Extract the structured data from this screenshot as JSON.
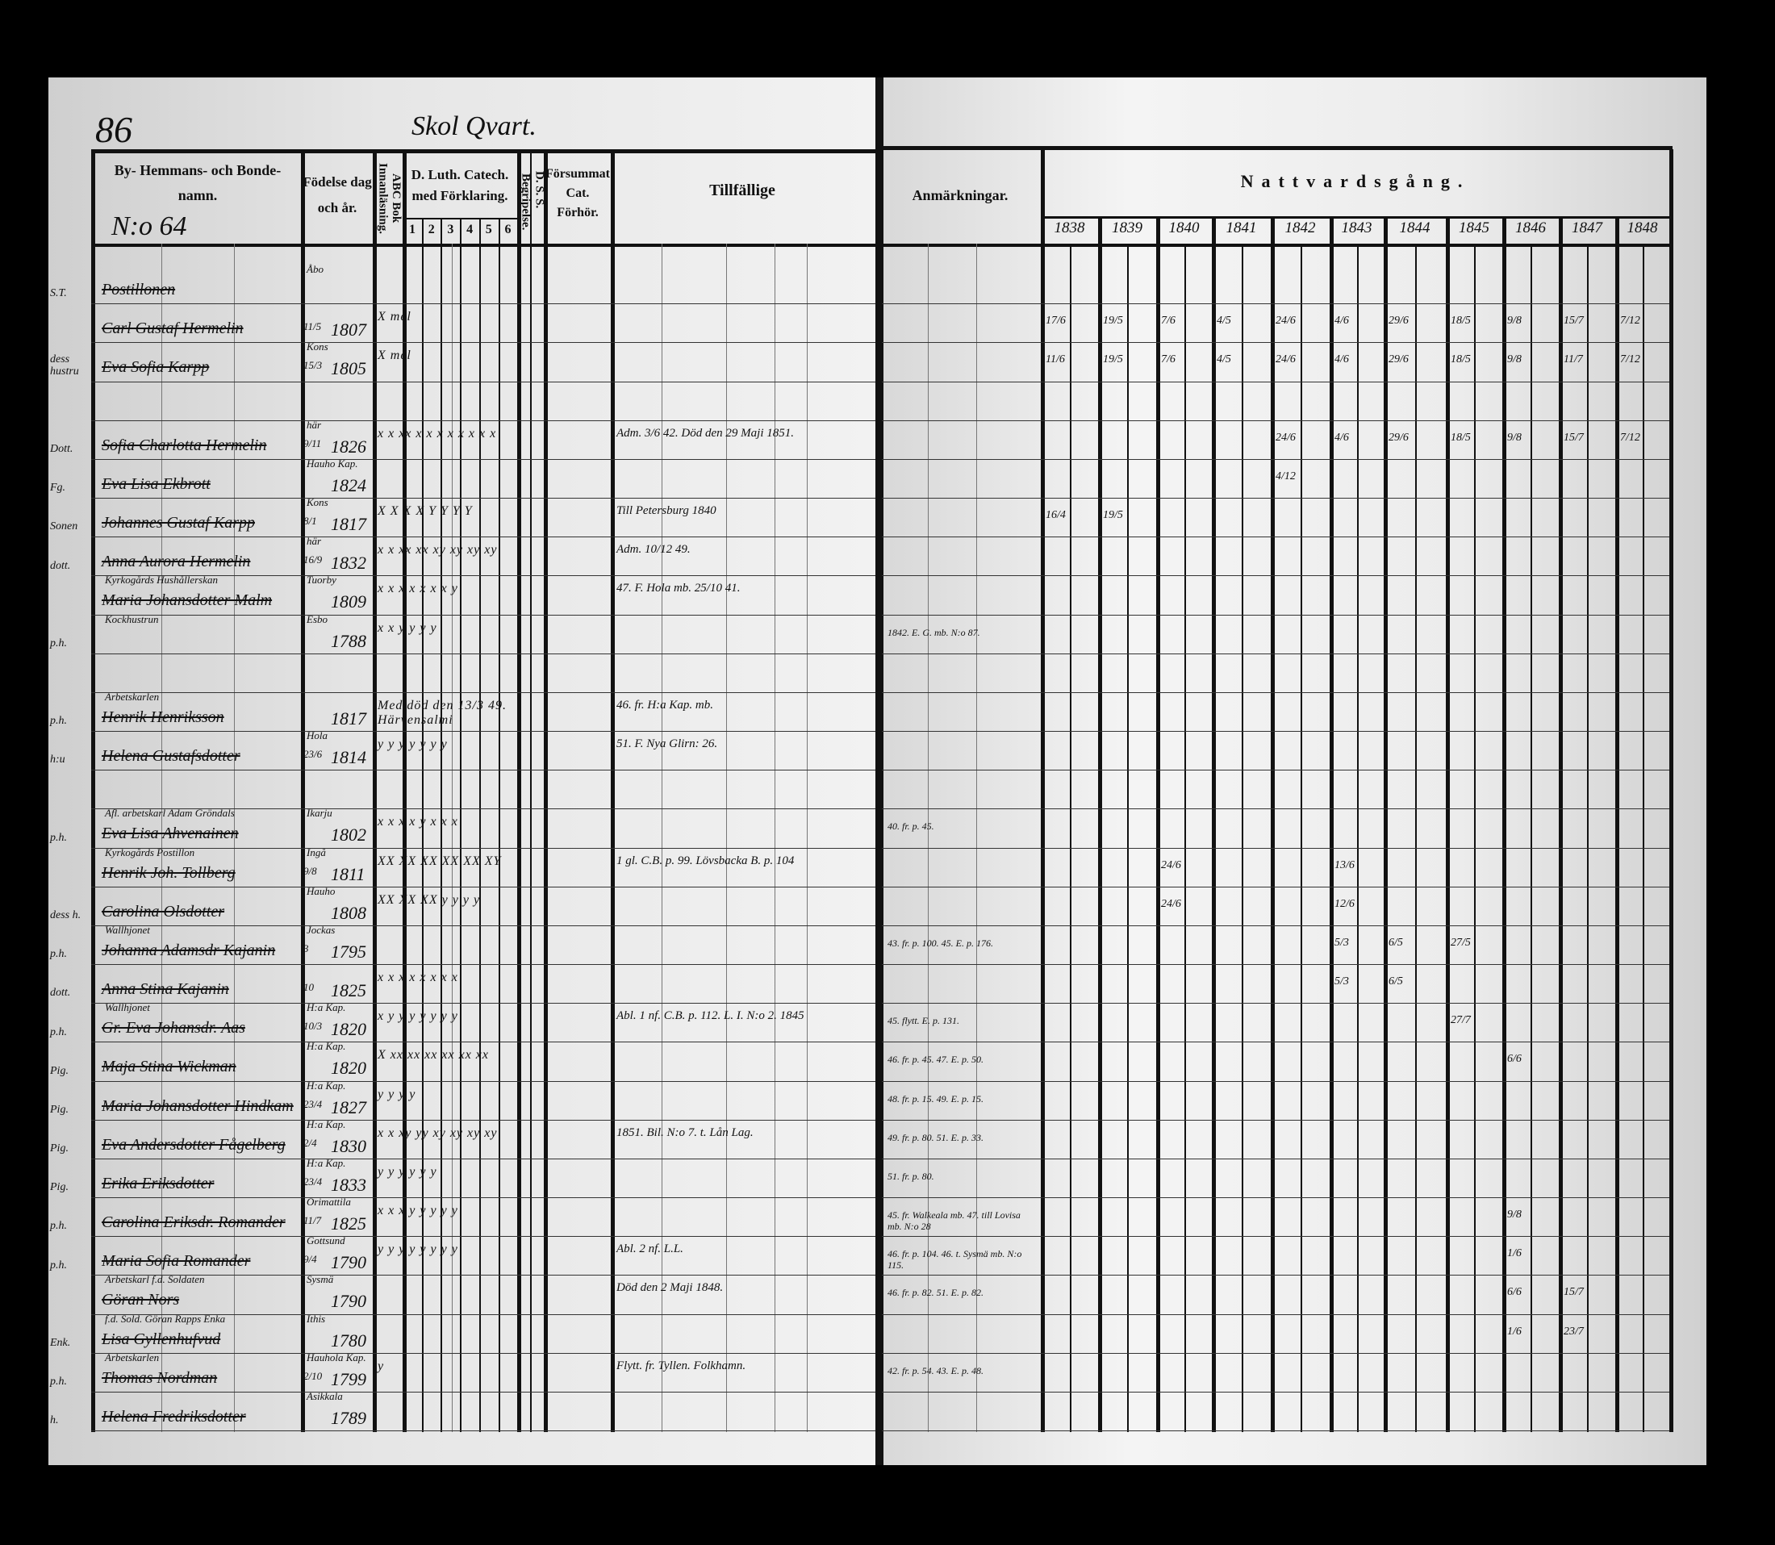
{
  "page_number": "86",
  "page_heading": "Skol Qvart.",
  "household_number": "N:o 64",
  "headers": {
    "names": "By- Hemmans- och Bonde-namn.",
    "birth": "Födelse dag och år.",
    "abc": "ABC Bok Innanläsning.",
    "catechism": "D. Luth. Catech. med Förklaring.",
    "catechism_cols": [
      "1",
      "2",
      "3",
      "4",
      "5",
      "6"
    ],
    "begrip": "Begripelse.",
    "dss": "D. S. S.",
    "forsummat": "Försummat Cat. Förhör.",
    "tillfallige": "Tillfällige",
    "anmarkningar": "Anmärkningar.",
    "nattvard": "Nattvardsgång.",
    "years": [
      "1838",
      "1839",
      "1840",
      "1841",
      "1842",
      "1843",
      "1844",
      "1845",
      "1846",
      "1847",
      "1848"
    ]
  },
  "rows": [
    {
      "prefix": "S.T.",
      "occupation": "",
      "name": "Postillonen",
      "date": "",
      "place": "Åbo",
      "year": "",
      "marks": "",
      "tillfallige": "",
      "anm": "",
      "nattvard": []
    },
    {
      "prefix": "",
      "occupation": "",
      "name": "Carl Gustaf Hermelin",
      "date": "11/5",
      "place": "",
      "year": "1807",
      "marks": "X        mel",
      "tillfallige": "",
      "anm": "",
      "nattvard": [
        "17/6",
        "19/5",
        "7/6",
        "4/5",
        "24/6",
        "4/6",
        "29/6",
        "18/5",
        "9/8",
        "15/7",
        "7/12"
      ]
    },
    {
      "prefix": "dess hustru",
      "occupation": "",
      "name": "Eva Sofia Karpp",
      "date": "15/3",
      "place": "Kons",
      "year": "1805",
      "marks": "X        mel",
      "tillfallige": "",
      "anm": "",
      "nattvard": [
        "11/6",
        "19/5",
        "7/6",
        "4/5",
        "24/6",
        "4/6",
        "29/6",
        "18/5",
        "9/8",
        "11/7",
        "7/12"
      ]
    },
    {
      "prefix": "",
      "occupation": "",
      "name": "",
      "date": "",
      "place": "",
      "year": "",
      "marks": "",
      "tillfallige": "",
      "anm": "",
      "nattvard": []
    },
    {
      "prefix": "Dott.",
      "occupation": "",
      "name": "Sofia Charlotta Hermelin",
      "date": "9/11",
      "place": "här",
      "year": "1826",
      "marks": "x x xx x x x x x x x x",
      "tillfallige": "Adm. 3/6 42. Död den 29 Maji 1851.",
      "anm": "",
      "nattvard": [
        "",
        "",
        "",
        "",
        "24/6",
        "4/6",
        "29/6",
        "18/5",
        "9/8",
        "15/7",
        "7/12"
      ]
    },
    {
      "prefix": "Fg.",
      "occupation": "",
      "name": "Eva Lisa Ekbrott",
      "date": "",
      "place": "Hauho Kap.",
      "year": "1824",
      "marks": "",
      "tillfallige": "",
      "anm": "",
      "nattvard": [
        "",
        "",
        "",
        "",
        "4/12"
      ]
    },
    {
      "prefix": "Sonen",
      "occupation": "",
      "name": "Johannes Gustaf Karpp",
      "date": "8/1",
      "place": "Kons",
      "year": "1817",
      "marks": "X X X X Y Y Y Y",
      "tillfallige": "Till Petersburg 1840",
      "anm": "",
      "nattvard": [
        "16/4",
        "19/5"
      ]
    },
    {
      "prefix": "dott.",
      "occupation": "",
      "name": "Anna Aurora Hermelin",
      "date": "16/9",
      "place": "här",
      "year": "1832",
      "marks": "x x xx xx xy xy xy xy",
      "tillfallige": "Adm. 10/12 49.",
      "anm": "",
      "nattvard": []
    },
    {
      "prefix": "",
      "occupation": "Kyrkogårds Hushållerskan",
      "name": "Maria Johansdotter Malm",
      "date": "",
      "place": "Tuorby",
      "year": "1809",
      "marks": "x x x x x x x y",
      "tillfallige": "47. F. Hola mb. 25/10 41.",
      "anm": "",
      "nattvard": []
    },
    {
      "prefix": "p.h.",
      "occupation": "Kockhustrun",
      "name": "",
      "date": "",
      "place": "Esbo",
      "year": "1788",
      "marks": "x x y y y y",
      "tillfallige": "",
      "anm": "1842. E. G. mb. N:o 87.",
      "nattvard": []
    },
    {
      "prefix": "",
      "occupation": "",
      "name": "",
      "date": "",
      "place": "",
      "year": "",
      "marks": "",
      "tillfallige": "",
      "anm": "",
      "nattvard": []
    },
    {
      "prefix": "p.h.",
      "occupation": "Arbetskarlen",
      "name": "Henrik Henriksson",
      "date": "",
      "place": "",
      "year": "1817",
      "marks": "Med död den 13/3 49. Härvensalmi",
      "tillfallige": "46. fr. H:a Kap. mb.",
      "anm": "",
      "nattvard": []
    },
    {
      "prefix": "h:u",
      "occupation": "",
      "name": "Helena Gustafsdotter",
      "date": "23/6",
      "place": "Hola",
      "year": "1814",
      "marks": "y y y y y y y",
      "tillfallige": "51. F. Nya Glirn: 26.",
      "anm": "",
      "nattvard": []
    },
    {
      "prefix": "",
      "occupation": "",
      "name": "",
      "date": "",
      "place": "",
      "year": "",
      "marks": "",
      "tillfallige": "",
      "anm": "",
      "nattvard": []
    },
    {
      "prefix": "p.h.",
      "occupation": "Afl. arbetskarl Adam Gröndals",
      "name": "Eva Lisa Ahvenainen",
      "date": "",
      "place": "Ikarju",
      "year": "1802",
      "marks": "x x x x y x x x",
      "tillfallige": "",
      "anm": "40. fr. p. 45.",
      "nattvard": []
    },
    {
      "prefix": "",
      "occupation": "Kyrkogårds Postillon",
      "name": "Henrik Joh. Tollberg",
      "date": "9/8",
      "place": "Ingå",
      "year": "1811",
      "marks": "XX XX XX XX XX XY",
      "tillfallige": "1 gl. C.B. p. 99. Lövsbacka B. p. 104",
      "anm": "",
      "nattvard": [
        "",
        "",
        "24/6",
        "",
        "",
        "13/6"
      ]
    },
    {
      "prefix": "dess h.",
      "occupation": "",
      "name": "Carolina Olsdotter",
      "date": "",
      "place": "Hauho",
      "year": "1808",
      "marks": "XX XX XX y y y y",
      "tillfallige": "",
      "anm": "",
      "nattvard": [
        "",
        "",
        "24/6",
        "",
        "",
        "12/6"
      ]
    },
    {
      "prefix": "p.h.",
      "occupation": "Wallhjonet",
      "name": "Johanna Adamsdr Kajanin",
      "date": "3",
      "place": "Jockas",
      "year": "1795",
      "marks": "",
      "tillfallige": "",
      "anm": "43. fr. p. 100. 45. E. p. 176.",
      "nattvard": [
        "",
        "",
        "",
        "",
        "",
        "5/3",
        "6/5",
        "27/5"
      ]
    },
    {
      "prefix": "dott.",
      "occupation": "",
      "name": "Anna Stina Kajanin",
      "date": "10",
      "place": "",
      "year": "1825",
      "marks": "x x x x x x x x",
      "tillfallige": "",
      "anm": "",
      "nattvard": [
        "",
        "",
        "",
        "",
        "",
        "5/3",
        "6/5"
      ]
    },
    {
      "prefix": "p.h.",
      "occupation": "Wallhjonet",
      "name": "Gr. Eva Johansdr. Aas",
      "date": "10/3",
      "place": "H:a Kap.",
      "year": "1820",
      "marks": "x y y y y y y y",
      "tillfallige": "Abl. 1 nf. C.B. p. 112. L. I. N:o 2. 1845",
      "anm": "45. flytt. E. p. 131.",
      "nattvard": [
        "",
        "",
        "",
        "",
        "",
        "",
        "",
        "27/7"
      ]
    },
    {
      "prefix": "Pig.",
      "occupation": "",
      "name": "Maja Stina Wickman",
      "date": "",
      "place": "H:a Kap.",
      "year": "1820",
      "marks": "X xx xx xx xx xx xx",
      "tillfallige": "",
      "anm": "46. fr. p. 45. 47. E. p. 50.",
      "nattvard": [
        "",
        "",
        "",
        "",
        "",
        "",
        "",
        "",
        "6/6"
      ]
    },
    {
      "prefix": "Pig.",
      "occupation": "",
      "name": "Maria Johansdotter Hindkam",
      "date": "23/4",
      "place": "H:a Kap.",
      "year": "1827",
      "marks": "y y y y",
      "tillfallige": "",
      "anm": "48. fr. p. 15. 49. E. p. 15.",
      "nattvard": []
    },
    {
      "prefix": "Pig.",
      "occupation": "",
      "name": "Eva Andersdotter Fågelberg",
      "date": "2/4",
      "place": "H:a Kap.",
      "year": "1830",
      "marks": "x x xy yy xy xy xy xy",
      "tillfallige": "1851. Bil. N:o 7. t. Lån Lag.",
      "anm": "49. fr. p. 80. 51. E. p. 33.",
      "nattvard": []
    },
    {
      "prefix": "Pig.",
      "occupation": "",
      "name": "Erika Eriksdotter",
      "date": "23/4",
      "place": "H:a Kap.",
      "year": "1833",
      "marks": "y y y y y y",
      "tillfallige": "",
      "anm": "51. fr. p. 80.",
      "nattvard": []
    },
    {
      "prefix": "p.h.",
      "occupation": "",
      "name": "Carolina Eriksdr. Romander",
      "date": "11/7",
      "place": "Orimattila",
      "year": "1825",
      "marks": "x x x y y y y y",
      "tillfallige": "",
      "anm": "45. fr. Walkeala mb. 47. till Lovisa mb. N:o 28",
      "nattvard": [
        "",
        "",
        "",
        "",
        "",
        "",
        "",
        "",
        "9/8"
      ]
    },
    {
      "prefix": "p.h.",
      "occupation": "",
      "name": "Maria Sofia Romander",
      "date": "9/4",
      "place": "Gottsund",
      "year": "1790",
      "marks": "y y y y y y y y",
      "tillfallige": "Abl. 2 nf. L.L.",
      "anm": "46. fr. p. 104. 46. t. Sysmä mb. N:o 115.",
      "nattvard": [
        "",
        "",
        "",
        "",
        "",
        "",
        "",
        "",
        "1/6"
      ]
    },
    {
      "prefix": "",
      "occupation": "Arbetskarl f.d. Soldaten",
      "name": "Göran Nors",
      "date": "",
      "place": "Sysmä",
      "year": "1790",
      "marks": "",
      "tillfallige": "Död den 2 Maji 1848.",
      "anm": "46. fr. p. 82. 51. E. p. 82.",
      "nattvard": [
        "",
        "",
        "",
        "",
        "",
        "",
        "",
        "",
        "6/6",
        "15/7"
      ]
    },
    {
      "prefix": "Enk.",
      "occupation": "f.d. Sold. Göran Rapps Enka",
      "name": "Lisa Gyllenhufvud",
      "date": "",
      "place": "Ithis",
      "year": "1780",
      "marks": "",
      "tillfallige": "",
      "anm": "",
      "nattvard": [
        "",
        "",
        "",
        "",
        "",
        "",
        "",
        "",
        "1/6",
        "23/7"
      ]
    },
    {
      "prefix": "p.h.",
      "occupation": "Arbetskarlen",
      "name": "Thomas Nordman",
      "date": "2/10",
      "place": "Hauhola Kap.",
      "year": "1799",
      "marks": "y",
      "tillfallige": "Flytt. fr. Tyllen. Folkhamn.",
      "anm": "42. fr. p. 54. 43. E. p. 48.",
      "nattvard": []
    },
    {
      "prefix": "h.",
      "occupation": "",
      "name": "Helena Fredriksdotter",
      "date": "",
      "place": "Asikkala",
      "year": "1789",
      "marks": "",
      "tillfallige": "",
      "anm": "",
      "nattvard": []
    }
  ]
}
